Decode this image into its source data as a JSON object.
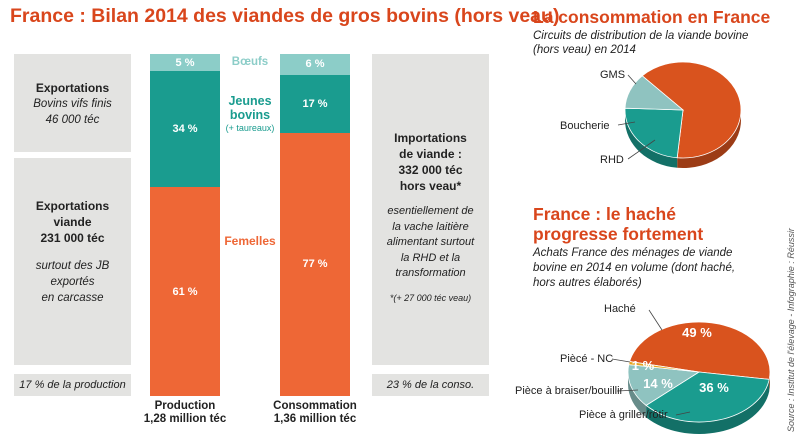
{
  "main_title": "France : Bilan 2014 des viandes de gros bovins (hors veau)",
  "colors": {
    "title": "#d9461c",
    "boeufs": "#8ccdc8",
    "jeunes_bovins": "#1a9c8f",
    "femelles": "#ee6736",
    "panel": "#e3e3e1"
  },
  "left_panel": {
    "export_vifs": {
      "line1": "Exportations",
      "line2": "Bovins vifs finis",
      "line3": "46 000 téc"
    },
    "export_viande": {
      "line1": "Exportations",
      "line2": "viande",
      "line3": "231 000 téc",
      "desc1": "surtout des JB",
      "desc2": "exportés",
      "desc3": "en carcasse"
    },
    "footer": "17 % de la production"
  },
  "right_panel": {
    "line1": "Importations",
    "line2": "de viande :",
    "line3": "332 000 téc",
    "line4": "hors veau*",
    "desc1": "esentiellement de",
    "desc2": "la vache laitière",
    "desc3": "alimentant surtout",
    "desc4": "la RHD et la",
    "desc5": "transformation",
    "footnote": "*(+ 27 000 téc veau)",
    "footer": "23 % de la conso."
  },
  "middle_labels": {
    "boeufs": "Bœufs",
    "jeunes1": "Jeunes",
    "jeunes2": "bovins",
    "jeunes3": "(+ taureaux)",
    "femelles": "Femelles"
  },
  "chart_data": [
    {
      "type": "bar",
      "stacked": true,
      "title": "France : Bilan 2014 des viandes de gros bovins (hors veau)",
      "categories": [
        "Production",
        "Consommation"
      ],
      "category_sublabels": [
        "1,28 million téc",
        "1,36 million téc"
      ],
      "series": [
        {
          "name": "Femelles",
          "values": [
            61,
            77
          ],
          "labels": [
            "61 %",
            "77 %"
          ]
        },
        {
          "name": "Jeunes bovins (+ taureaux)",
          "values": [
            34,
            17
          ],
          "labels": [
            "34 %",
            "17 %"
          ]
        },
        {
          "name": "Bœufs",
          "values": [
            5,
            6
          ],
          "labels": [
            "5 %",
            "6 %"
          ]
        }
      ],
      "ylim": [
        0,
        100
      ]
    },
    {
      "type": "pie",
      "title": "La consommation en France",
      "subtitle1": "Circuits de distribution de la viande bovine",
      "subtitle2": "(hors veau) en 2014",
      "slices": [
        {
          "label": "GMS",
          "value": 64,
          "color": "#d9531e"
        },
        {
          "label": "RHD",
          "value": 24,
          "color": "#1a9c8f"
        },
        {
          "label": "Boucherie",
          "value": 12,
          "color": "#8fc3c0"
        }
      ]
    },
    {
      "type": "pie",
      "title1": "France : le haché",
      "title2": "progresse fortement",
      "subtitle1": "Achats France des ménages de viande",
      "subtitle2": "bovine en 2014 en volume (dont haché,",
      "subtitle3": "hors autres élaborés)",
      "slices": [
        {
          "label": "Haché",
          "value": 49,
          "value_label": "49 %",
          "color": "#d9531e"
        },
        {
          "label": "Pièce à griller/rôtir",
          "value": 36,
          "value_label": "36 %",
          "color": "#1a9c8f"
        },
        {
          "label": "Pièce à braiser/bouillir",
          "value": 14,
          "value_label": "14 %",
          "color": "#8fc3c0"
        },
        {
          "label": "Piècé - NC",
          "value": 1,
          "value_label": "1 %",
          "color": "#e6a21c"
        }
      ]
    }
  ],
  "source": "Source : Institut de l'élevage - Infographie : Réussir"
}
